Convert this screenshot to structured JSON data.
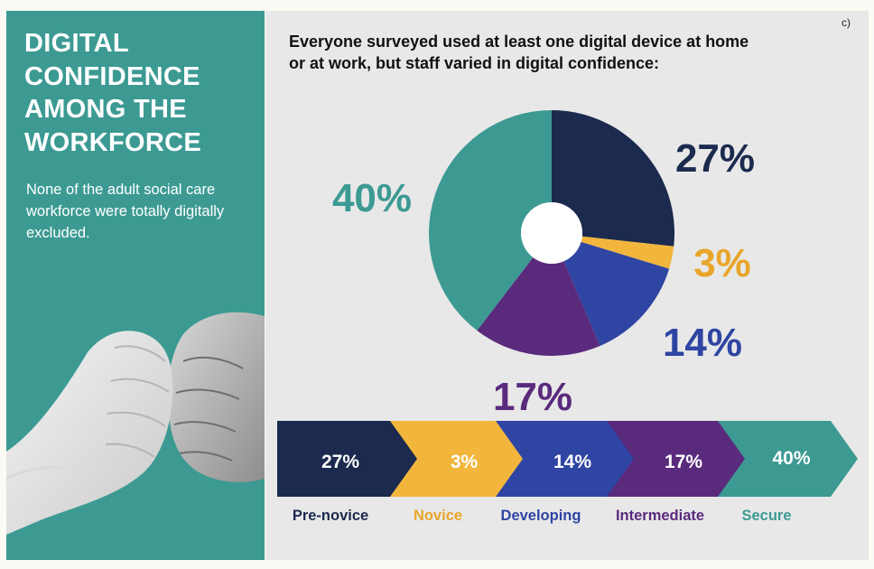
{
  "corner_label": "c)",
  "left_panel": {
    "title": "DIGITAL CONFIDENCE AMONG THE WORKFORCE",
    "subtitle": "None of the adult social care workforce were totally digitally excluded."
  },
  "headline": "Everyone surveyed used at least one digital device at home or at work, but staff varied in digital confidence:",
  "chart_data": {
    "type": "pie",
    "donut": true,
    "categories": [
      "Pre-novice",
      "Novice",
      "Developing",
      "Intermediate",
      "Secure"
    ],
    "values": [
      27,
      3,
      14,
      17,
      40
    ],
    "labels": [
      "27%",
      "3%",
      "14%",
      "17%",
      "40%"
    ],
    "colors": [
      "#1b2a4e",
      "#f2b63d",
      "#2f45a3",
      "#5a2a7d",
      "#3c9a93"
    ],
    "label_colors": [
      "#1b2a4e",
      "#e9a52a",
      "#2f45a3",
      "#5a2a7d",
      "#3c9a93"
    ]
  }
}
